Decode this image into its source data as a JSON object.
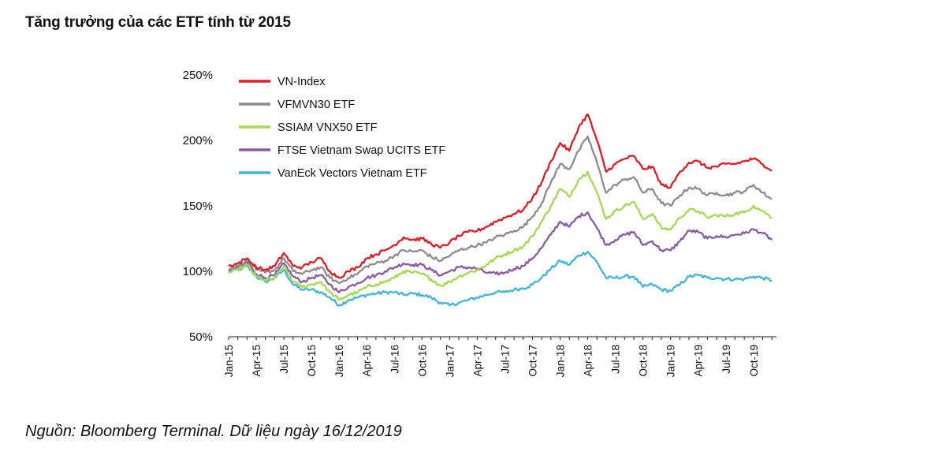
{
  "header": {
    "title": "Tăng trưởng của các ETF tính từ 2015"
  },
  "footer": {
    "source": "Nguồn: Bloomberg Terminal. Dữ liệu ngày 16/12/2019"
  },
  "chart_data": {
    "type": "line",
    "title": "Tăng trưởng của các ETF tính từ 2015",
    "xlabel": "",
    "ylabel": "",
    "ylim": [
      50,
      250
    ],
    "yticks": [
      "50%",
      "100%",
      "150%",
      "200%",
      "250%"
    ],
    "ytick_values": [
      50,
      100,
      150,
      200,
      250
    ],
    "x_ticks": [
      "Jan-15",
      "Apr-15",
      "Jul-15",
      "Oct-15",
      "Jan-16",
      "Apr-16",
      "Jul-16",
      "Oct-16",
      "Jan-17",
      "Apr-17",
      "Jul-17",
      "Oct-17",
      "Jan-18",
      "Apr-18",
      "Jul-18",
      "Oct-18",
      "Jan-19",
      "Apr-19",
      "Jul-19",
      "Oct-19"
    ],
    "x_tick_index": [
      0,
      3,
      6,
      9,
      12,
      15,
      18,
      21,
      24,
      27,
      30,
      33,
      36,
      39,
      42,
      45,
      48,
      51,
      54,
      57
    ],
    "x_max_index": 59.5,
    "grid": false,
    "legend_position": "top-left",
    "series": [
      {
        "name": "VN-Index",
        "color": "#e31b23",
        "points": [
          [
            0,
            104
          ],
          [
            1,
            106
          ],
          [
            2,
            110
          ],
          [
            3,
            103
          ],
          [
            4,
            101
          ],
          [
            5,
            104
          ],
          [
            6,
            114
          ],
          [
            7,
            104
          ],
          [
            8,
            103
          ],
          [
            9,
            107
          ],
          [
            10,
            110
          ],
          [
            11,
            100
          ],
          [
            12,
            95
          ],
          [
            13,
            100
          ],
          [
            14,
            103
          ],
          [
            15,
            110
          ],
          [
            16,
            113
          ],
          [
            17,
            116
          ],
          [
            18,
            120
          ],
          [
            19,
            126
          ],
          [
            20,
            124
          ],
          [
            21,
            125
          ],
          [
            22,
            121
          ],
          [
            23,
            118
          ],
          [
            24,
            122
          ],
          [
            25,
            127
          ],
          [
            26,
            130
          ],
          [
            27,
            131
          ],
          [
            28,
            134
          ],
          [
            29,
            138
          ],
          [
            30,
            141
          ],
          [
            31,
            144
          ],
          [
            32,
            147
          ],
          [
            33,
            156
          ],
          [
            34,
            168
          ],
          [
            35,
            184
          ],
          [
            36,
            198
          ],
          [
            37,
            192
          ],
          [
            38,
            210
          ],
          [
            39,
            220
          ],
          [
            40,
            200
          ],
          [
            41,
            176
          ],
          [
            42,
            182
          ],
          [
            43,
            186
          ],
          [
            44,
            188
          ],
          [
            45,
            178
          ],
          [
            46,
            180
          ],
          [
            47,
            166
          ],
          [
            48,
            164
          ],
          [
            49,
            176
          ],
          [
            50,
            183
          ],
          [
            51,
            184
          ],
          [
            52,
            179
          ],
          [
            53,
            180
          ],
          [
            54,
            182
          ],
          [
            55,
            182
          ],
          [
            56,
            184
          ],
          [
            57,
            186
          ],
          [
            58,
            182
          ],
          [
            59,
            177
          ]
        ]
      },
      {
        "name": "VFMVN30 ETF",
        "color": "#8c8c8c",
        "points": [
          [
            0,
            102
          ],
          [
            1,
            104
          ],
          [
            2,
            108
          ],
          [
            3,
            101
          ],
          [
            4,
            99
          ],
          [
            5,
            101
          ],
          [
            6,
            110
          ],
          [
            7,
            100
          ],
          [
            8,
            98
          ],
          [
            9,
            101
          ],
          [
            10,
            103
          ],
          [
            11,
            95
          ],
          [
            12,
            91
          ],
          [
            13,
            95
          ],
          [
            14,
            98
          ],
          [
            15,
            104
          ],
          [
            16,
            106
          ],
          [
            17,
            108
          ],
          [
            18,
            112
          ],
          [
            19,
            116
          ],
          [
            20,
            115
          ],
          [
            21,
            116
          ],
          [
            22,
            111
          ],
          [
            23,
            108
          ],
          [
            24,
            112
          ],
          [
            25,
            116
          ],
          [
            26,
            118
          ],
          [
            27,
            120
          ],
          [
            28,
            122
          ],
          [
            29,
            126
          ],
          [
            30,
            128
          ],
          [
            31,
            131
          ],
          [
            32,
            134
          ],
          [
            33,
            142
          ],
          [
            34,
            152
          ],
          [
            35,
            168
          ],
          [
            36,
            182
          ],
          [
            37,
            178
          ],
          [
            38,
            192
          ],
          [
            39,
            203
          ],
          [
            40,
            183
          ],
          [
            41,
            160
          ],
          [
            42,
            166
          ],
          [
            43,
            170
          ],
          [
            44,
            172
          ],
          [
            45,
            160
          ],
          [
            46,
            163
          ],
          [
            47,
            152
          ],
          [
            48,
            150
          ],
          [
            49,
            158
          ],
          [
            50,
            164
          ],
          [
            51,
            163
          ],
          [
            52,
            158
          ],
          [
            53,
            160
          ],
          [
            54,
            158
          ],
          [
            55,
            160
          ],
          [
            56,
            161
          ],
          [
            57,
            166
          ],
          [
            58,
            160
          ],
          [
            59,
            155
          ]
        ]
      },
      {
        "name": "SSIAM VNX50 ETF",
        "color": "#a5d94e",
        "points": [
          [
            0,
            99
          ],
          [
            1,
            101
          ],
          [
            2,
            105
          ],
          [
            3,
            96
          ],
          [
            4,
            93
          ],
          [
            5,
            95
          ],
          [
            6,
            104
          ],
          [
            7,
            92
          ],
          [
            8,
            88
          ],
          [
            9,
            90
          ],
          [
            10,
            92
          ],
          [
            11,
            84
          ],
          [
            12,
            78
          ],
          [
            13,
            82
          ],
          [
            14,
            84
          ],
          [
            15,
            88
          ],
          [
            16,
            90
          ],
          [
            17,
            92
          ],
          [
            18,
            95
          ],
          [
            19,
            100
          ],
          [
            20,
            99
          ],
          [
            21,
            98
          ],
          [
            22,
            94
          ],
          [
            23,
            89
          ],
          [
            24,
            92
          ],
          [
            25,
            96
          ],
          [
            26,
            99
          ],
          [
            27,
            101
          ],
          [
            28,
            105
          ],
          [
            29,
            110
          ],
          [
            30,
            113
          ],
          [
            31,
            116
          ],
          [
            32,
            119
          ],
          [
            33,
            127
          ],
          [
            34,
            138
          ],
          [
            35,
            150
          ],
          [
            36,
            163
          ],
          [
            37,
            157
          ],
          [
            38,
            170
          ],
          [
            39,
            176
          ],
          [
            40,
            160
          ],
          [
            41,
            140
          ],
          [
            42,
            146
          ],
          [
            43,
            150
          ],
          [
            44,
            153
          ],
          [
            45,
            140
          ],
          [
            46,
            144
          ],
          [
            47,
            133
          ],
          [
            48,
            132
          ],
          [
            49,
            141
          ],
          [
            50,
            147
          ],
          [
            51,
            146
          ],
          [
            52,
            141
          ],
          [
            53,
            143
          ],
          [
            54,
            142
          ],
          [
            55,
            144
          ],
          [
            56,
            145
          ],
          [
            57,
            150
          ],
          [
            58,
            146
          ],
          [
            59,
            141
          ]
        ]
      },
      {
        "name": "FTSE Vietnam Swap UCITS ETF",
        "color": "#8a5aa6",
        "points": [
          [
            0,
            101
          ],
          [
            1,
            103
          ],
          [
            2,
            107
          ],
          [
            3,
            98
          ],
          [
            4,
            95
          ],
          [
            5,
            97
          ],
          [
            6,
            106
          ],
          [
            7,
            96
          ],
          [
            8,
            92
          ],
          [
            9,
            95
          ],
          [
            10,
            97
          ],
          [
            11,
            90
          ],
          [
            12,
            84
          ],
          [
            13,
            88
          ],
          [
            14,
            91
          ],
          [
            15,
            95
          ],
          [
            16,
            97
          ],
          [
            17,
            100
          ],
          [
            18,
            103
          ],
          [
            19,
            106
          ],
          [
            20,
            105
          ],
          [
            21,
            105
          ],
          [
            22,
            101
          ],
          [
            23,
            97
          ],
          [
            24,
            100
          ],
          [
            25,
            103
          ],
          [
            26,
            103
          ],
          [
            27,
            102
          ],
          [
            28,
            99
          ],
          [
            29,
            98
          ],
          [
            30,
            99
          ],
          [
            31,
            102
          ],
          [
            32,
            104
          ],
          [
            33,
            110
          ],
          [
            34,
            118
          ],
          [
            35,
            128
          ],
          [
            36,
            138
          ],
          [
            37,
            134
          ],
          [
            38,
            142
          ],
          [
            39,
            145
          ],
          [
            40,
            133
          ],
          [
            41,
            120
          ],
          [
            42,
            124
          ],
          [
            43,
            128
          ],
          [
            44,
            130
          ],
          [
            45,
            120
          ],
          [
            46,
            123
          ],
          [
            47,
            116
          ],
          [
            48,
            116
          ],
          [
            49,
            123
          ],
          [
            50,
            131
          ],
          [
            51,
            130
          ],
          [
            52,
            125
          ],
          [
            53,
            127
          ],
          [
            54,
            126
          ],
          [
            55,
            128
          ],
          [
            56,
            129
          ],
          [
            57,
            132
          ],
          [
            58,
            129
          ],
          [
            59,
            124
          ]
        ]
      },
      {
        "name": "VanEck Vectors Vietnam ETF",
        "color": "#3fb6d9",
        "points": [
          [
            0,
            100
          ],
          [
            1,
            101
          ],
          [
            2,
            104
          ],
          [
            3,
            96
          ],
          [
            4,
            92
          ],
          [
            5,
            95
          ],
          [
            6,
            101
          ],
          [
            7,
            90
          ],
          [
            8,
            86
          ],
          [
            9,
            86
          ],
          [
            10,
            84
          ],
          [
            11,
            80
          ],
          [
            12,
            74
          ],
          [
            13,
            78
          ],
          [
            14,
            80
          ],
          [
            15,
            82
          ],
          [
            16,
            83
          ],
          [
            17,
            84
          ],
          [
            18,
            84
          ],
          [
            19,
            82
          ],
          [
            20,
            83
          ],
          [
            21,
            82
          ],
          [
            22,
            80
          ],
          [
            23,
            76
          ],
          [
            24,
            74
          ],
          [
            25,
            76
          ],
          [
            26,
            78
          ],
          [
            27,
            80
          ],
          [
            28,
            82
          ],
          [
            29,
            84
          ],
          [
            30,
            84
          ],
          [
            31,
            86
          ],
          [
            32,
            87
          ],
          [
            33,
            90
          ],
          [
            34,
            95
          ],
          [
            35,
            102
          ],
          [
            36,
            108
          ],
          [
            37,
            105
          ],
          [
            38,
            112
          ],
          [
            39,
            115
          ],
          [
            40,
            107
          ],
          [
            41,
            95
          ],
          [
            42,
            95
          ],
          [
            43,
            96
          ],
          [
            44,
            96
          ],
          [
            45,
            88
          ],
          [
            46,
            90
          ],
          [
            47,
            86
          ],
          [
            48,
            85
          ],
          [
            49,
            90
          ],
          [
            50,
            96
          ],
          [
            51,
            97
          ],
          [
            52,
            95
          ],
          [
            53,
            95
          ],
          [
            54,
            94
          ],
          [
            55,
            94
          ],
          [
            56,
            94
          ],
          [
            57,
            96
          ],
          [
            58,
            95
          ],
          [
            59,
            93
          ]
        ]
      }
    ]
  }
}
